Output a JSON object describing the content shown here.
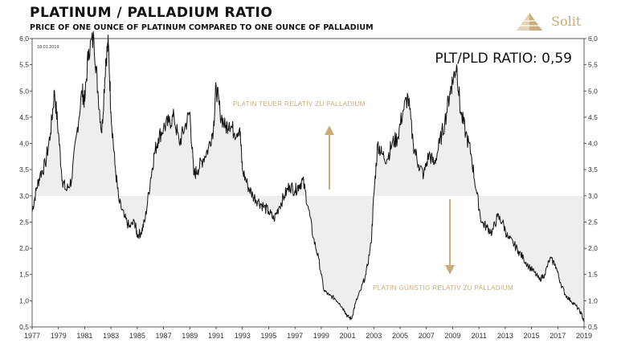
{
  "header": {
    "title": "PLATINUM / PALLADIUM RATIO",
    "subtitle": "PRICE OF ONE OUNCE OF PLATINUM COMPARED TO ONE OUNCE OF PALLADIUM",
    "brand": "Solit"
  },
  "colors": {
    "line": "#111111",
    "fill": "#eeeeee",
    "annotation": "#c9ad7c",
    "grid_off": true
  },
  "chart_data": {
    "type": "line",
    "date_label": "18.01.2019",
    "ratio_label": "PLT/PLD RATIO: 0,59",
    "annotations": {
      "upper": "PLATIN TEUER RELATIV ZU PALLADIUM",
      "lower": "PLATIN GÜNSTIG RELATIV ZU PALLADIUM"
    },
    "baseline": 3.0,
    "xlim": [
      1977,
      2019
    ],
    "ylim": [
      0.5,
      6.0
    ],
    "x_ticks": [
      "1977",
      "1979",
      "1981",
      "1983",
      "1985",
      "1987",
      "1989",
      "1991",
      "1993",
      "1995",
      "1997",
      "1999",
      "2001",
      "2003",
      "2005",
      "2007",
      "2009",
      "2011",
      "2013",
      "2015",
      "2017",
      "2019"
    ],
    "y_ticks": [
      "6,0",
      "5,5",
      "5,0",
      "4,5",
      "4,0",
      "3,5",
      "3,0",
      "2,5",
      "2,0",
      "1,5",
      "1,0",
      "0,5"
    ],
    "series": [
      {
        "x": [
          1977.0,
          1977.3,
          1977.6,
          1978.0,
          1978.4,
          1978.7,
          1979.0,
          1979.3,
          1979.6,
          1980.0,
          1980.4,
          1980.8,
          1981.0,
          1981.3,
          1981.7,
          1982.0,
          1982.3,
          1982.6,
          1982.8,
          1983.0,
          1983.3,
          1983.6,
          1984.0,
          1984.4,
          1984.8,
          1985.0,
          1985.3,
          1985.6,
          1986.0,
          1986.3,
          1986.6,
          1987.0,
          1987.4,
          1987.8,
          1988.2,
          1988.6,
          1989.0,
          1989.3,
          1989.6,
          1990.0,
          1990.4,
          1990.8,
          1991.0,
          1991.3,
          1991.7,
          1992.0,
          1992.4,
          1992.8,
          1993.0,
          1993.4,
          1993.8,
          1994.2,
          1994.6,
          1995.0,
          1995.4,
          1995.8,
          1996.2,
          1996.6,
          1997.0,
          1997.3,
          1997.6,
          1998.0,
          1998.4,
          1998.8,
          1999.2,
          1999.6,
          2000.0,
          2000.4,
          2000.8,
          2001.0,
          2001.3,
          2001.6,
          2002.0,
          2002.4,
          2002.8,
          2003.0,
          2003.3,
          2003.6,
          2004.0,
          2004.4,
          2004.8,
          2005.2,
          2005.6,
          2006.0,
          2006.4,
          2006.8,
          2007.2,
          2007.6,
          2008.0,
          2008.4,
          2008.8,
          2009.0,
          2009.3,
          2009.6,
          2010.0,
          2010.4,
          2010.8,
          2011.2,
          2011.6,
          2012.0,
          2012.4,
          2012.8,
          2013.2,
          2013.6,
          2014.0,
          2014.4,
          2014.8,
          2015.2,
          2015.6,
          2016.0,
          2016.4,
          2016.8,
          2017.2,
          2017.6,
          2018.0,
          2018.4,
          2018.8,
          2019.0
        ],
        "y": [
          2.7,
          3.1,
          3.4,
          3.6,
          4.2,
          5.0,
          4.2,
          3.3,
          3.1,
          3.3,
          4.2,
          5.0,
          4.8,
          5.8,
          6.0,
          5.0,
          4.2,
          5.6,
          5.9,
          4.6,
          3.6,
          2.9,
          2.6,
          2.4,
          2.5,
          2.25,
          2.3,
          2.55,
          3.3,
          3.8,
          4.1,
          4.3,
          4.4,
          4.5,
          4.0,
          4.3,
          4.6,
          3.4,
          3.5,
          3.7,
          3.9,
          4.3,
          5.1,
          4.6,
          4.3,
          4.4,
          4.2,
          4.3,
          3.5,
          3.2,
          3.0,
          2.9,
          2.8,
          2.7,
          2.55,
          2.8,
          3.0,
          3.2,
          3.1,
          3.2,
          3.3,
          2.8,
          2.2,
          1.8,
          1.2,
          1.1,
          1.05,
          0.95,
          0.8,
          0.7,
          0.65,
          0.95,
          1.2,
          1.5,
          2.1,
          3.0,
          4.0,
          3.8,
          3.7,
          4.0,
          4.1,
          4.6,
          4.9,
          4.0,
          3.6,
          3.4,
          3.8,
          3.6,
          4.0,
          4.4,
          5.0,
          5.2,
          5.5,
          4.6,
          4.2,
          3.8,
          3.1,
          2.5,
          2.4,
          2.3,
          2.6,
          2.5,
          2.2,
          2.1,
          1.95,
          1.8,
          1.65,
          1.55,
          1.4,
          1.5,
          1.8,
          1.7,
          1.35,
          1.1,
          1.0,
          0.9,
          0.75,
          0.59
        ]
      }
    ]
  }
}
